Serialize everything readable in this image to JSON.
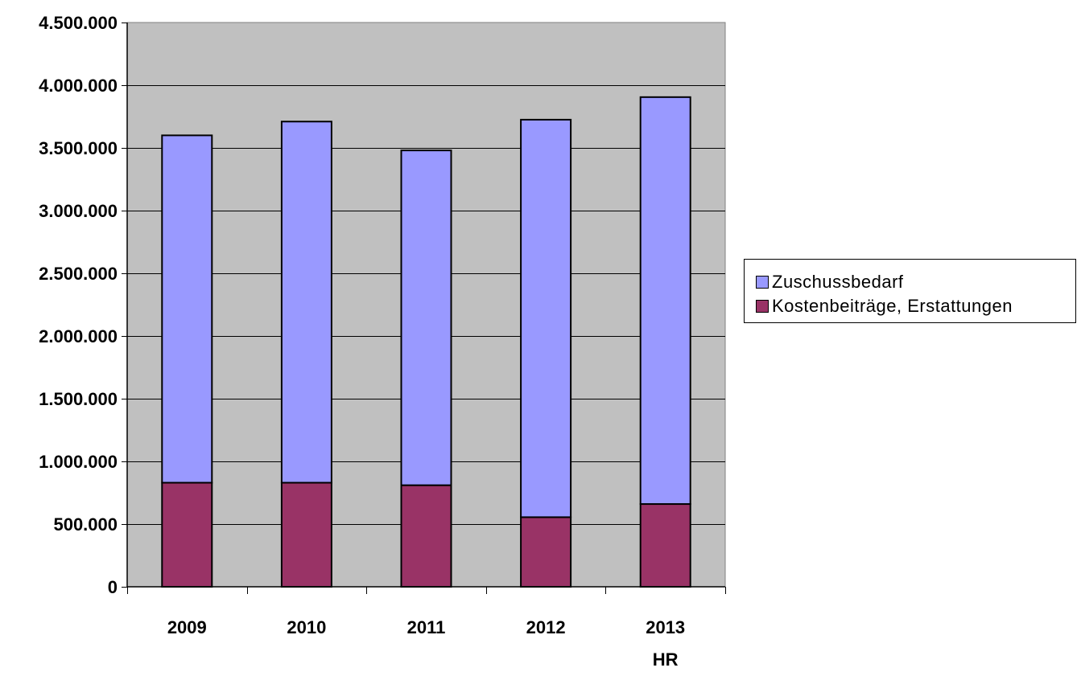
{
  "chart_data": {
    "type": "bar",
    "stacked": true,
    "categories": [
      [
        "2009"
      ],
      [
        "2010"
      ],
      [
        "2011"
      ],
      [
        "2012"
      ],
      [
        "2013",
        "HR"
      ]
    ],
    "series": [
      {
        "name": "Kostenbeiträge, Erstattungen",
        "color": "#993366",
        "values": [
          830000,
          830000,
          810000,
          555000,
          660000
        ]
      },
      {
        "name": "Zuschussbedarf",
        "color": "#9999ff",
        "values": [
          2770000,
          2880000,
          2670000,
          3170000,
          3245000
        ]
      }
    ],
    "totals": [
      3600000,
      3710000,
      3480000,
      3725000,
      3905000
    ],
    "ylim": [
      0,
      4500000
    ],
    "yticks": [
      {
        "value": 0,
        "label": "0"
      },
      {
        "value": 500000,
        "label": "500.000"
      },
      {
        "value": 1000000,
        "label": "1.000.000"
      },
      {
        "value": 1500000,
        "label": "1.500.000"
      },
      {
        "value": 2000000,
        "label": "2.000.000"
      },
      {
        "value": 2500000,
        "label": "2.500.000"
      },
      {
        "value": 3000000,
        "label": "3.000.000"
      },
      {
        "value": 3500000,
        "label": "3.500.000"
      },
      {
        "value": 4000000,
        "label": "4.000.000"
      },
      {
        "value": 4500000,
        "label": "4.500.000"
      }
    ],
    "plot_background": "#c0c0c0",
    "grid": true,
    "legend_position": "right"
  },
  "legend": {
    "items": [
      {
        "label": "Zuschussbedarf",
        "color": "#9999ff"
      },
      {
        "label": "Kostenbeiträge, Erstattungen",
        "color": "#993366"
      }
    ]
  }
}
